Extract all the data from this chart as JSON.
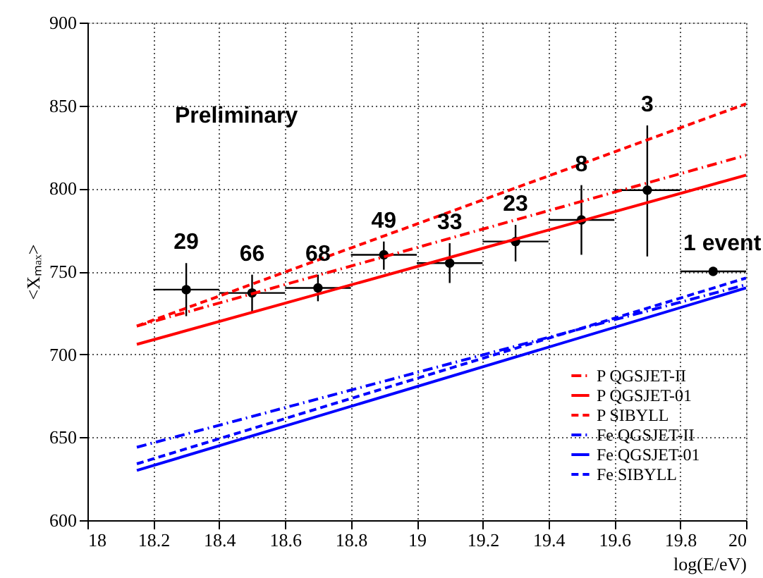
{
  "chart_data": {
    "type": "scatter",
    "xlabel": "log(E/eV)",
    "ylabel": "<Xₘₐₓ>",
    "xlim": [
      18,
      20
    ],
    "ylim": [
      600,
      900
    ],
    "xticks": [
      18,
      18.2,
      18.4,
      18.6,
      18.8,
      19,
      19.2,
      19.4,
      19.6,
      19.8,
      20
    ],
    "yticks": [
      600,
      650,
      700,
      750,
      800,
      850,
      900
    ],
    "grid": true,
    "legend": "bottom right",
    "series": [
      {
        "color": "#000000",
        "marker": "circle",
        "x": [
          18.3,
          18.5,
          18.7,
          18.9,
          19.1,
          19.3,
          19.5,
          19.7,
          19.9
        ],
        "values": [
          739,
          737,
          740,
          760,
          755,
          768,
          781,
          799,
          750
        ],
        "errors": [
          [
            723,
            755
          ],
          [
            725,
            748
          ],
          [
            732,
            748
          ],
          [
            751,
            768
          ],
          [
            743,
            767
          ],
          [
            756,
            778
          ],
          [
            760,
            802
          ],
          [
            759,
            838
          ],
          null
        ],
        "xerrors": [
          0.1,
          0.1,
          0.1,
          0.1,
          0.1,
          0.1,
          0.1,
          0.1,
          0.1
        ]
      },
      {
        "type": "line",
        "name": "P  QGSJET-II",
        "color": "#ff0000",
        "line_style": "dashdot",
        "x": [
          18.15,
          20
        ],
        "values": [
          717,
          820
        ]
      },
      {
        "type": "line",
        "name": "P  QGSJET-01",
        "color": "#ff0000",
        "line_style": "solid",
        "x": [
          18.15,
          20
        ],
        "values": [
          706,
          808
        ]
      },
      {
        "type": "line",
        "name": "P  SIBYLL",
        "color": "#ff0000",
        "line_style": "dashed",
        "x": [
          18.15,
          20
        ],
        "values": [
          717,
          851
        ]
      },
      {
        "type": "line",
        "name": "Fe  QGSJET-II",
        "color": "#0000ff",
        "line_style": "dashdot",
        "x": [
          18.15,
          20
        ],
        "values": [
          644,
          742
        ]
      },
      {
        "type": "line",
        "name": "Fe  QGSJET-01",
        "color": "#0000ff",
        "line_style": "solid",
        "x": [
          18.15,
          20
        ],
        "values": [
          630,
          740
        ]
      },
      {
        "type": "line",
        "name": "Fe  SIBYLL",
        "color": "#0000ff",
        "line_style": "dashed",
        "x": [
          18.15,
          20
        ],
        "values": [
          634,
          746
        ]
      }
    ],
    "annotations": [
      "Preliminary",
      "29",
      "66",
      "68",
      "49",
      "33",
      "23",
      "8",
      "3",
      "1 event"
    ]
  }
}
